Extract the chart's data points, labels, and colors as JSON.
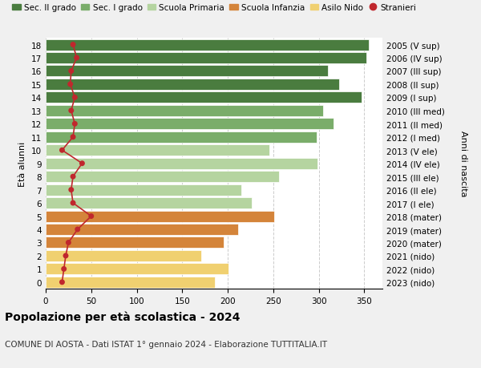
{
  "ages": [
    18,
    17,
    16,
    15,
    14,
    13,
    12,
    11,
    10,
    9,
    8,
    7,
    6,
    5,
    4,
    3,
    2,
    1,
    0
  ],
  "bar_values": [
    355,
    352,
    310,
    322,
    347,
    305,
    316,
    298,
    246,
    299,
    256,
    215,
    226,
    251,
    211,
    196,
    171,
    201,
    186
  ],
  "bar_colors": [
    "#4a7c3f",
    "#4a7c3f",
    "#4a7c3f",
    "#4a7c3f",
    "#4a7c3f",
    "#7aad6a",
    "#7aad6a",
    "#7aad6a",
    "#b5d4a0",
    "#b5d4a0",
    "#b5d4a0",
    "#b5d4a0",
    "#b5d4a0",
    "#d4843a",
    "#d4843a",
    "#d4843a",
    "#f0d070",
    "#f0d070",
    "#f0d070"
  ],
  "stranieri_values": [
    30,
    34,
    28,
    27,
    32,
    28,
    32,
    30,
    18,
    40,
    30,
    28,
    30,
    50,
    35,
    25,
    22,
    20,
    18
  ],
  "right_labels": [
    "2005 (V sup)",
    "2006 (IV sup)",
    "2007 (III sup)",
    "2008 (II sup)",
    "2009 (I sup)",
    "2010 (III med)",
    "2011 (II med)",
    "2012 (I med)",
    "2013 (V ele)",
    "2014 (IV ele)",
    "2015 (III ele)",
    "2016 (II ele)",
    "2017 (I ele)",
    "2018 (mater)",
    "2019 (mater)",
    "2020 (mater)",
    "2021 (nido)",
    "2022 (nido)",
    "2023 (nido)"
  ],
  "legend_labels": [
    "Sec. II grado",
    "Sec. I grado",
    "Scuola Primaria",
    "Scuola Infanzia",
    "Asilo Nido",
    "Stranieri"
  ],
  "legend_colors": [
    "#4a7c3f",
    "#7aad6a",
    "#b5d4a0",
    "#d4843a",
    "#f0d070",
    "#c0272d"
  ],
  "ylabel_left": "Età alunni",
  "ylabel_right": "Anni di nascita",
  "title": "Popolazione per età scolastica - 2024",
  "subtitle": "COMUNE DI AOSTA - Dati ISTAT 1° gennaio 2024 - Elaborazione TUTTITALIA.IT",
  "xlim": [
    0,
    370
  ],
  "xticks": [
    0,
    50,
    100,
    150,
    200,
    250,
    300,
    350
  ],
  "bg_color": "#f0f0f0",
  "bar_bg_color": "#ffffff",
  "stranieri_color": "#c0272d",
  "grid_color": "#cccccc"
}
